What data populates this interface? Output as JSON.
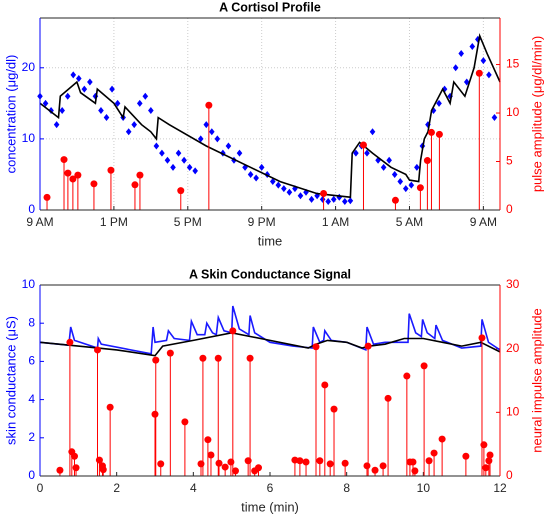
{
  "chart_data": [
    {
      "type": "combo",
      "title": "A Cortisol Profile",
      "xlabel": "time",
      "ylabel": "concentration (μg/dl)",
      "y2label": "pulse amplitude (μg/dl/min)",
      "xlim": [
        0,
        24.9
      ],
      "xticks": [
        {
          "value": 0,
          "label": "9 AM"
        },
        {
          "value": 4,
          "label": "1 PM"
        },
        {
          "value": 8,
          "label": "5 PM"
        },
        {
          "value": 12,
          "label": "9 PM"
        },
        {
          "value": 16,
          "label": "1 AM"
        },
        {
          "value": 20,
          "label": "5 AM"
        },
        {
          "value": 24,
          "label": "9 AM"
        }
      ],
      "ylim": [
        0,
        27
      ],
      "yticks": [
        0,
        10,
        20
      ],
      "y2lim": [
        0,
        19.8
      ],
      "y2ticks": [
        0,
        5,
        10,
        15
      ],
      "grid": true,
      "ycolor": "#0000ff",
      "y2color": "#ff0000",
      "series": [
        {
          "type": "scatter",
          "color": "#0000ff",
          "x": [
            0,
            0.3,
            0.6,
            0.9,
            1.2,
            1.5,
            1.8,
            2.1,
            2.4,
            2.7,
            3.0,
            3.3,
            3.6,
            3.9,
            4.2,
            4.5,
            4.8,
            5.1,
            5.4,
            5.7,
            6.0,
            6.3,
            6.6,
            6.9,
            7.2,
            7.5,
            7.8,
            8.1,
            8.4,
            8.7,
            9.0,
            9.3,
            9.6,
            9.9,
            10.2,
            10.5,
            10.8,
            11.1,
            11.4,
            11.7,
            12,
            12.3,
            12.6,
            12.9,
            13.2,
            13.5,
            13.8,
            14.1,
            14.4,
            14.7,
            15,
            15.3,
            15.6,
            15.9,
            16.2,
            16.5,
            16.8,
            17.1,
            17.4,
            17.7,
            18,
            18.3,
            18.6,
            18.9,
            19.2,
            19.5,
            19.8,
            20.1,
            20.4,
            20.7,
            21,
            21.3,
            21.6,
            21.9,
            22.2,
            22.5,
            22.8,
            23.1,
            23.4,
            23.7,
            24,
            24.3,
            24.6
          ],
          "values": [
            16,
            15,
            14,
            12,
            14,
            16,
            19,
            18.5,
            17,
            18,
            16,
            14,
            13,
            17,
            15,
            13,
            11,
            12,
            15,
            16,
            14,
            9,
            8,
            7,
            6,
            8,
            7,
            6,
            5.5,
            10,
            12,
            11,
            10,
            8,
            9,
            7,
            8,
            6,
            5,
            4.5,
            6,
            5,
            4,
            3.5,
            3,
            2.5,
            3,
            2,
            2.5,
            1.5,
            2,
            1.5,
            1.2,
            1.5,
            1.8,
            1.2,
            1.3,
            8,
            9,
            8,
            11,
            7,
            6,
            7,
            5,
            4,
            3,
            3.5,
            6,
            9,
            12,
            14,
            15,
            17,
            16,
            20,
            22,
            18,
            23,
            24,
            21,
            19,
            13
          ]
        },
        {
          "type": "line",
          "color": "#000000",
          "x": [
            0,
            1,
            1.1,
            2,
            2.2,
            3,
            3.1,
            4,
            4.5,
            4.6,
            5.5,
            6,
            6.3,
            6.4,
            7,
            9,
            11,
            13,
            15,
            16.8,
            16.9,
            17.3,
            18,
            19,
            19.8,
            20,
            20.5,
            20.6,
            20.8,
            21,
            21.2,
            21.8,
            22.2,
            22.4,
            23,
            23.5,
            23.8,
            24.2,
            24.9
          ],
          "values": [
            15,
            13,
            16,
            18,
            16.5,
            15,
            17,
            15,
            13,
            14.5,
            12,
            11,
            10,
            13,
            12,
            9,
            6.5,
            4,
            2.3,
            1.8,
            8,
            9.5,
            8,
            6,
            5,
            4.2,
            4,
            7,
            10,
            11,
            14,
            17,
            15,
            18,
            16,
            20,
            24.5,
            22,
            18
          ]
        },
        {
          "type": "stem",
          "color": "#ff0000",
          "axis": "y2",
          "x": [
            0.38,
            1.3,
            1.51,
            1.78,
            2.05,
            2.92,
            3.84,
            5.14,
            5.41,
            7.62,
            9.14,
            15.35,
            17.51,
            19.24,
            20.59,
            20.97,
            21.19,
            21.62,
            23.78
          ],
          "values": [
            1.3,
            5.2,
            3.8,
            3.2,
            3.6,
            2.7,
            4.1,
            2.6,
            3.6,
            2,
            10.8,
            1.7,
            6.7,
            1,
            2.3,
            5.1,
            8,
            7.8,
            14.1
          ]
        }
      ]
    },
    {
      "type": "combo",
      "title": "A Skin Conductance Signal",
      "xlabel": "time (min)",
      "ylabel": "skin conductance (μS)",
      "y2label": "neural impulse amplitude",
      "xlim": [
        0,
        12
      ],
      "xticks": [
        0,
        2,
        4,
        6,
        8,
        10,
        12
      ],
      "ylim": [
        0,
        10
      ],
      "yticks": [
        0,
        2,
        4,
        6,
        8,
        10
      ],
      "y2lim": [
        0,
        30
      ],
      "y2ticks": [
        0,
        10,
        20,
        30
      ],
      "grid": false,
      "ycolor": "#0000ff",
      "y2color": "#ff0000",
      "series": [
        {
          "type": "line",
          "color": "#1a1aff",
          "x": [
            0,
            0.75,
            0.8,
            0.9,
            1.5,
            1.52,
            1.6,
            2.9,
            2.95,
            3.0,
            3.3,
            3.35,
            3.5,
            3.9,
            3.95,
            4.1,
            4.3,
            4.35,
            4.5,
            4.6,
            4.65,
            4.8,
            5.0,
            5.03,
            5.2,
            5.45,
            5.48,
            5.6,
            6.0,
            6.6,
            7.1,
            7.13,
            7.3,
            7.4,
            7.43,
            7.6,
            8.0,
            8.5,
            8.53,
            8.7,
            9.0,
            9.6,
            9.63,
            9.8,
            9.95,
            9.98,
            10.1,
            10.3,
            10.33,
            10.5,
            11.0,
            11.5,
            11.53,
            11.7,
            12
          ],
          "values": [
            7,
            6.85,
            7.8,
            7.1,
            6.7,
            7.2,
            6.9,
            6.4,
            7.8,
            7.0,
            7.1,
            7.6,
            7.2,
            7.1,
            8.1,
            7.4,
            7.4,
            8.0,
            7.5,
            7.4,
            8.3,
            7.6,
            7.5,
            8.9,
            7.7,
            7.4,
            8.4,
            7.5,
            7.0,
            6.8,
            6.7,
            7.8,
            7.0,
            7.1,
            7.6,
            7.1,
            7.0,
            6.6,
            7.8,
            6.9,
            7.0,
            7.0,
            8.5,
            7.5,
            7.3,
            8.2,
            7.5,
            7.2,
            7.9,
            7.1,
            6.7,
            6.8,
            8.2,
            7.0,
            6.6
          ]
        },
        {
          "type": "line",
          "color": "#000000",
          "x": [
            0,
            1,
            2,
            3,
            3.2,
            4,
            5,
            5.5,
            6,
            7,
            7.2,
            7.5,
            8,
            8.4,
            8.6,
            9,
            9.5,
            10,
            10.5,
            11,
            11.5,
            12
          ],
          "values": [
            7,
            6.8,
            6.6,
            6.3,
            6.8,
            7.1,
            7.5,
            7.3,
            7.1,
            6.7,
            6.9,
            7.1,
            7.0,
            6.7,
            6.8,
            6.9,
            7.2,
            7.2,
            7.0,
            6.8,
            7.0,
            6.5
          ]
        },
        {
          "type": "stem",
          "color": "#ff0000",
          "axis": "y2",
          "x": [
            0.52,
            0.78,
            0.83,
            0.9,
            0.94,
            1.5,
            1.55,
            1.63,
            1.65,
            1.83,
            3.0,
            3.02,
            3.15,
            3.4,
            3.78,
            4.2,
            4.25,
            4.38,
            4.46,
            4.65,
            4.67,
            4.83,
            4.98,
            5.03,
            5.1,
            5.43,
            5.48,
            5.6,
            5.7,
            6.65,
            6.78,
            6.94,
            7.2,
            7.3,
            7.43,
            7.57,
            7.67,
            7.96,
            8.53,
            8.56,
            8.74,
            8.95,
            9.08,
            9.57,
            9.65,
            9.73,
            9.78,
            10.02,
            10.15,
            10.28,
            10.49,
            11.11,
            11.53,
            11.58,
            11.63,
            11.71,
            11.74
          ],
          "values": [
            0.9,
            21,
            3.8,
            3.1,
            1.3,
            19.8,
            2.5,
            1.6,
            1,
            10.8,
            9.7,
            18.2,
            1.9,
            19.3,
            8.5,
            1.9,
            18.5,
            5.7,
            3.3,
            18.5,
            2,
            1.4,
            2.2,
            22.8,
            0.8,
            2.4,
            18.5,
            0.8,
            1.3,
            2.5,
            2.4,
            2.2,
            20.3,
            2.4,
            14.3,
            1.9,
            10.5,
            2,
            1.6,
            20.4,
            0.9,
            1.6,
            12.2,
            15.7,
            2.2,
            2.2,
            0.8,
            17.3,
            2.4,
            3.6,
            5.8,
            3.1,
            21.7,
            4.9,
            1.3,
            2.4,
            3.3
          ]
        }
      ]
    }
  ]
}
